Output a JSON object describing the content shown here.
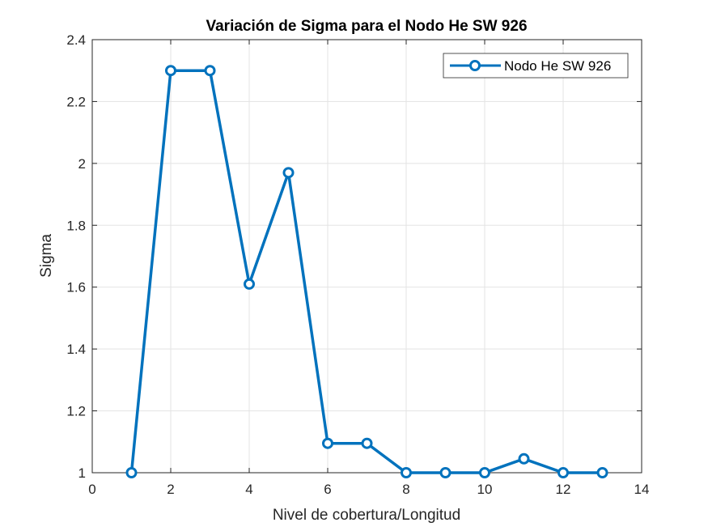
{
  "chart_data": {
    "type": "line",
    "title": "Variación de Sigma para el Nodo He SW 926",
    "xlabel": "Nivel de cobertura/Longitud",
    "ylabel": "Sigma",
    "xlim": [
      0,
      14
    ],
    "ylim": [
      1,
      2.4
    ],
    "xticks": [
      0,
      2,
      4,
      6,
      8,
      10,
      12,
      14
    ],
    "yticks": [
      1,
      1.2,
      1.4,
      1.6,
      1.8,
      2,
      2.2,
      2.4
    ],
    "xtick_labels": [
      "0",
      "2",
      "4",
      "6",
      "8",
      "10",
      "12",
      "14"
    ],
    "ytick_labels": [
      "1",
      "1.2",
      "1.4",
      "1.6",
      "1.8",
      "2",
      "2.2",
      "2.4"
    ],
    "grid": true,
    "legend_position": "top-right",
    "series": [
      {
        "name": "Nodo He SW 926",
        "color": "#0072BD",
        "marker": "circle",
        "x": [
          1,
          2,
          3,
          4,
          5,
          6,
          7,
          8,
          9,
          10,
          11,
          12,
          13
        ],
        "y": [
          1.0,
          2.3,
          2.3,
          1.61,
          1.97,
          1.095,
          1.095,
          1.0,
          1.0,
          1.0,
          1.045,
          1.0,
          1.0
        ]
      }
    ]
  }
}
